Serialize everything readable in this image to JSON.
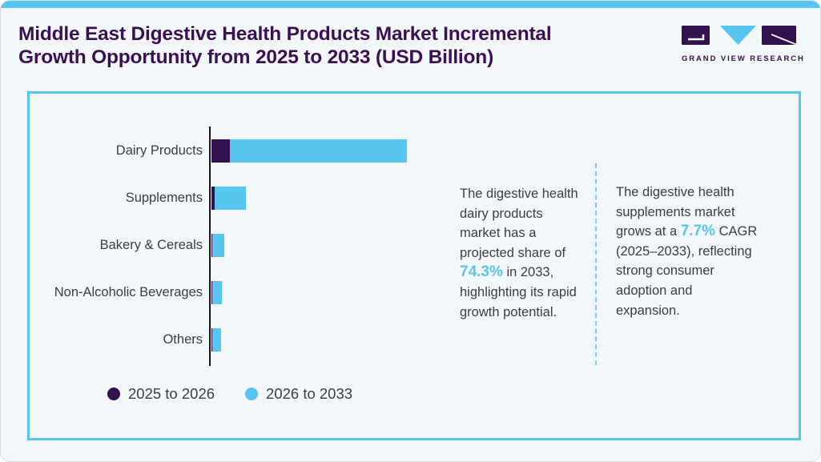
{
  "page": {
    "title_line1": "Middle East Digestive Health Products Market Incremental",
    "title_line2": "Growth Opportunity from 2025 to 2033 (USD Billion)"
  },
  "logo": {
    "text": "GRAND VIEW RESEARCH"
  },
  "chart_data": {
    "type": "bar",
    "orientation": "horizontal",
    "stacked": true,
    "title": "Middle East Digestive Health Products Market Incremental Growth Opportunity from 2025 to 2033 (USD Billion)",
    "categories": [
      "Dairy Products",
      "Supplements",
      "Bakery & Cereals",
      "Non-Alcoholic Beverages",
      "Others"
    ],
    "series": [
      {
        "name": "2025 to 2026",
        "color": "#32114E",
        "values_relative": [
          23,
          4,
          1,
          1,
          1
        ]
      },
      {
        "name": "2026 to 2033",
        "color": "#56C5F0",
        "values_relative": [
          221,
          39,
          15,
          12,
          11
        ]
      }
    ],
    "units": "relative bar lengths (no numeric value axis shown in figure)",
    "value_axis_visible": false,
    "grid": false,
    "legend_position": "bottom-left"
  },
  "insights": [
    {
      "pre": "The digestive health dairy products market has a projected share of ",
      "highlight": "74.3%",
      "post": " in 2033, highlighting its rapid growth potential."
    },
    {
      "pre": "The digestive health supplements market grows at a ",
      "highlight": "7.7%",
      "post": " CAGR (2025–2033), reflecting strong consumer adoption and expansion."
    }
  ],
  "colors": {
    "dark_purple": "#32114E",
    "light_blue": "#56C5F0",
    "title_text": "#3B1053",
    "body_text": "#3C3C46",
    "background": "#F2F7FA",
    "panel_border": "#56C5F0",
    "axis": "#15151A"
  }
}
